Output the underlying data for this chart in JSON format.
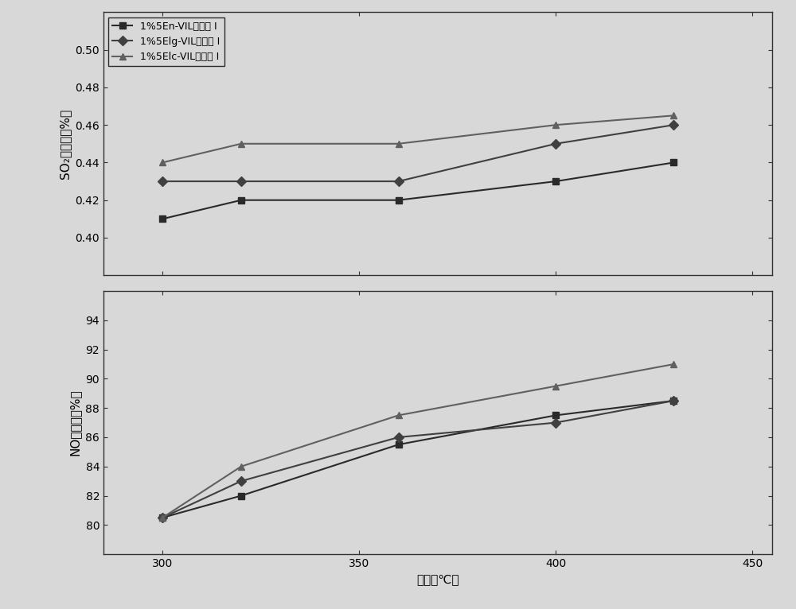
{
  "x": [
    300,
    320,
    360,
    400,
    430
  ],
  "so2_series": [
    [
      0.41,
      0.42,
      0.42,
      0.43,
      0.44
    ],
    [
      0.43,
      0.43,
      0.43,
      0.45,
      0.46
    ],
    [
      0.44,
      0.45,
      0.45,
      0.46,
      0.465
    ]
  ],
  "no_series": [
    [
      80.5,
      82.0,
      85.5,
      87.5,
      88.5
    ],
    [
      80.5,
      83.0,
      86.0,
      87.0,
      88.5
    ],
    [
      80.5,
      84.0,
      87.5,
      89.5,
      91.0
    ]
  ],
  "labels": [
    "1%5En-VIL催化剑 I",
    "1%5Elg-VIL催化剑 I",
    "1%5Elc-VIL催化剑 I"
  ],
  "markers": [
    "s",
    "D",
    "^"
  ],
  "colors": [
    "#2a2a2a",
    "#404040",
    "#606060"
  ],
  "so2_ylabel": "SO₂转化率（%）",
  "no_ylabel": "NO转化率（%）",
  "xlabel": "温度（℃）",
  "so2_ylim": [
    0.38,
    0.52
  ],
  "so2_yticks": [
    0.4,
    0.42,
    0.44,
    0.46,
    0.48,
    0.5
  ],
  "no_ylim": [
    78,
    96
  ],
  "no_yticks": [
    80,
    82,
    84,
    86,
    88,
    90,
    92,
    94
  ],
  "xlim": [
    285,
    455
  ],
  "xticks": [
    300,
    350,
    400,
    450
  ],
  "background_color": "#d8d8d8",
  "plot_bg": "#d8d8d8",
  "linewidth": 1.5,
  "markersize": 6
}
